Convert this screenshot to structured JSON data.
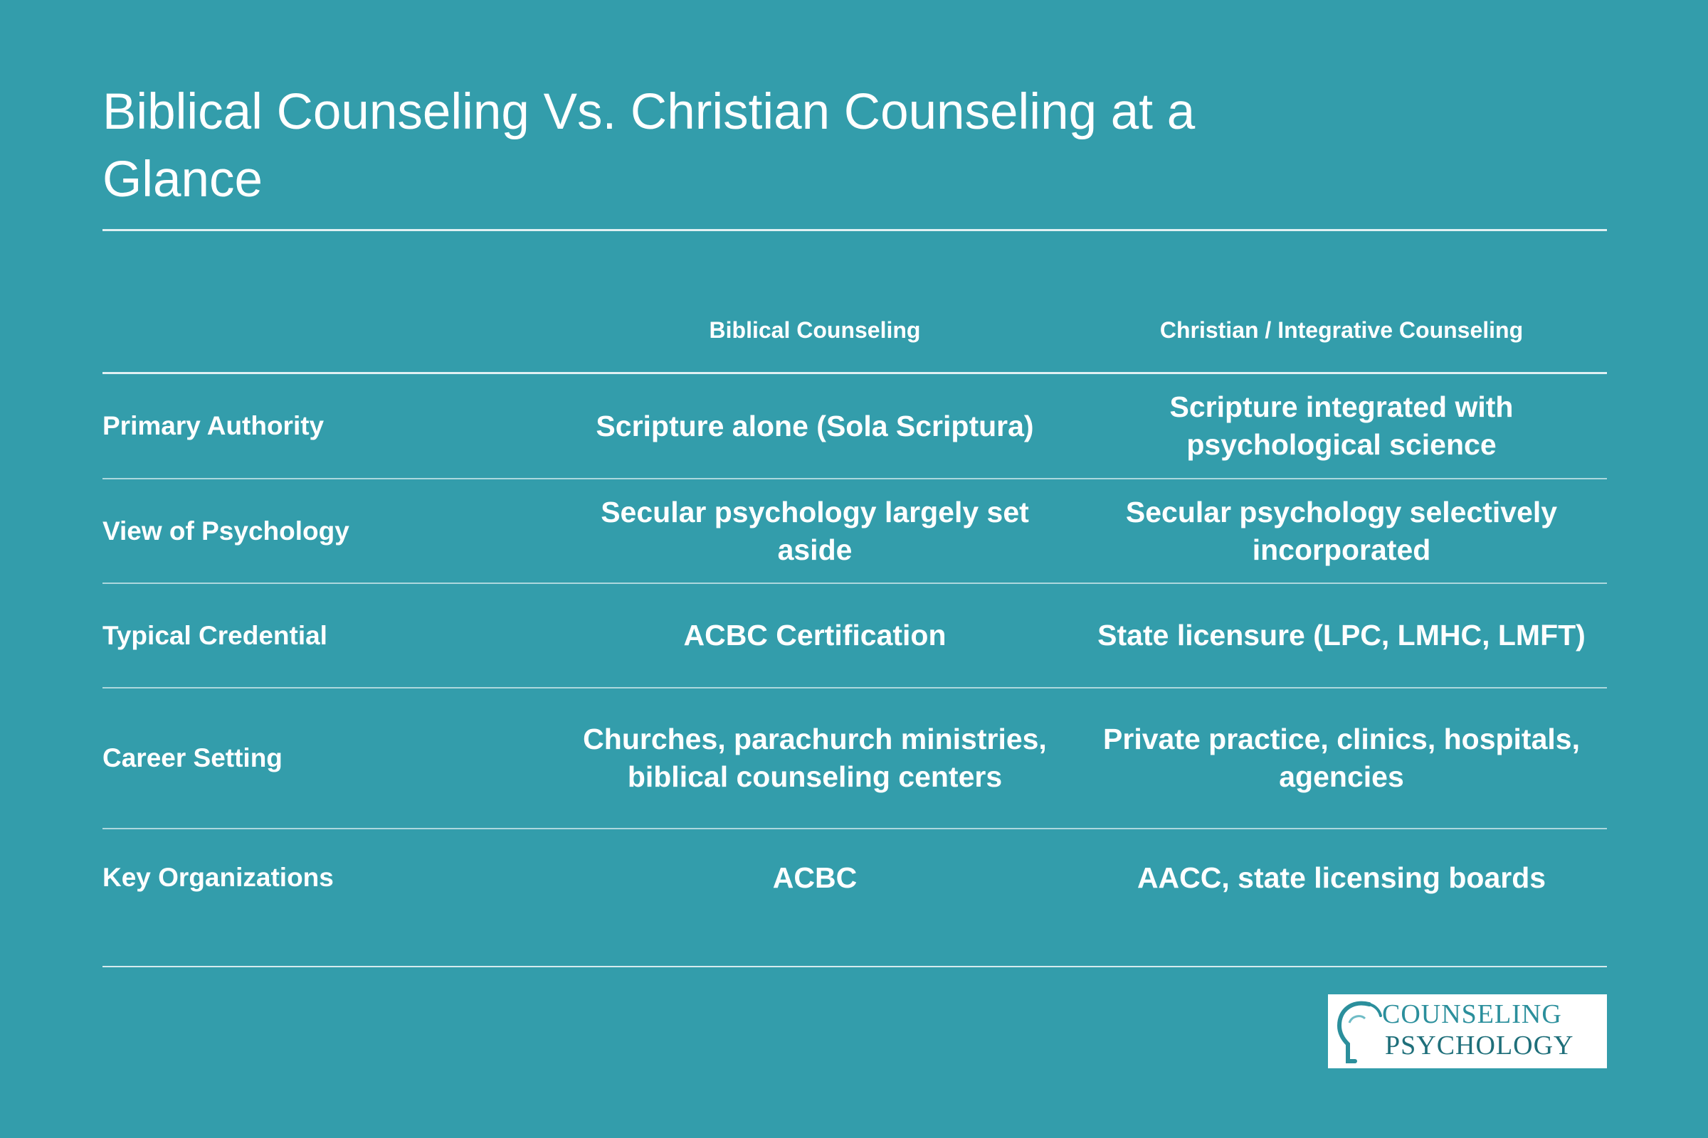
{
  "title": "Biblical Counseling Vs. Christian Counseling at a Glance",
  "columns": {
    "c1": "Biblical Counseling",
    "c2": "Christian / Integrative Counseling"
  },
  "rows": [
    {
      "label": "Primary Authority",
      "c1": "Scripture alone (Sola Scriptura)",
      "c2": "Scripture integrated with psychological science"
    },
    {
      "label": "View of Psychology",
      "c1": "Secular psychology largely set aside",
      "c2": "Secular psychology selectively incorporated"
    },
    {
      "label": "Typical Credential",
      "c1": "ACBC Certification",
      "c2": "State licensure (LPC, LMHC, LMFT)"
    },
    {
      "label": "Career Setting",
      "c1": "Churches, parachurch ministries, biblical counseling centers",
      "c2": "Private practice, clinics, hospitals, agencies"
    },
    {
      "label": "Key Organizations",
      "c1": "ACBC",
      "c2": "AACC, state licensing boards"
    }
  ],
  "logo": {
    "line1": "COUNSELING",
    "line2": "PSYCHOLOGY",
    "icon": "head-profile-icon"
  },
  "colors": {
    "background": "#339dab",
    "text": "#ffffff",
    "logo_teal": "#2b8f9c"
  }
}
